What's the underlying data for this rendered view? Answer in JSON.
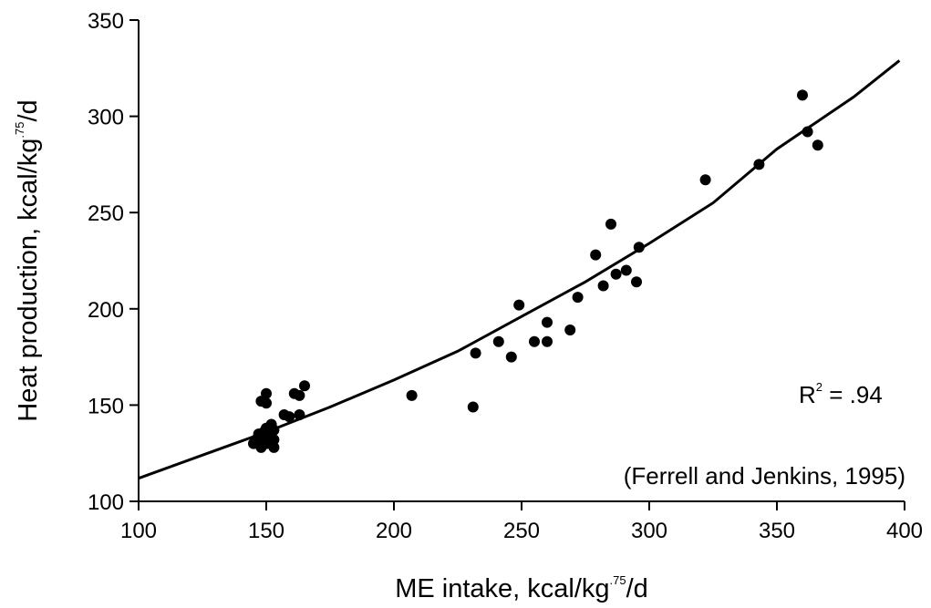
{
  "chart_data": {
    "type": "scatter",
    "xlabel": {
      "prefix": "ME intake, kcal/kg",
      "sup": ".75",
      "suffix": "/d"
    },
    "ylabel": {
      "prefix": "Heat production, kcal/kg",
      "sup": ".75",
      "suffix": "/d"
    },
    "xlim": [
      100,
      400
    ],
    "ylim": [
      100,
      350
    ],
    "xticks": [
      100,
      150,
      200,
      250,
      300,
      350,
      400
    ],
    "yticks": [
      100,
      150,
      200,
      250,
      300,
      350
    ],
    "grid": false,
    "points": [
      {
        "x": 145,
        "y": 130
      },
      {
        "x": 146,
        "y": 132
      },
      {
        "x": 147,
        "y": 135
      },
      {
        "x": 148,
        "y": 128
      },
      {
        "x": 148,
        "y": 152
      },
      {
        "x": 149,
        "y": 133
      },
      {
        "x": 149,
        "y": 136
      },
      {
        "x": 150,
        "y": 130
      },
      {
        "x": 150,
        "y": 138
      },
      {
        "x": 150,
        "y": 156
      },
      {
        "x": 150,
        "y": 151
      },
      {
        "x": 151,
        "y": 132
      },
      {
        "x": 151,
        "y": 134
      },
      {
        "x": 152,
        "y": 136
      },
      {
        "x": 152,
        "y": 130
      },
      {
        "x": 152,
        "y": 140
      },
      {
        "x": 153,
        "y": 128
      },
      {
        "x": 153,
        "y": 132
      },
      {
        "x": 153,
        "y": 137
      },
      {
        "x": 157,
        "y": 145
      },
      {
        "x": 159,
        "y": 144
      },
      {
        "x": 161,
        "y": 156
      },
      {
        "x": 163,
        "y": 155
      },
      {
        "x": 163,
        "y": 145
      },
      {
        "x": 165,
        "y": 160
      },
      {
        "x": 207,
        "y": 155
      },
      {
        "x": 231,
        "y": 149
      },
      {
        "x": 232,
        "y": 177
      },
      {
        "x": 241,
        "y": 183
      },
      {
        "x": 246,
        "y": 175
      },
      {
        "x": 249,
        "y": 202
      },
      {
        "x": 255,
        "y": 183
      },
      {
        "x": 260,
        "y": 193
      },
      {
        "x": 260,
        "y": 183
      },
      {
        "x": 269,
        "y": 189
      },
      {
        "x": 272,
        "y": 206
      },
      {
        "x": 279,
        "y": 228
      },
      {
        "x": 282,
        "y": 212
      },
      {
        "x": 285,
        "y": 244
      },
      {
        "x": 287,
        "y": 218
      },
      {
        "x": 291,
        "y": 220
      },
      {
        "x": 295,
        "y": 214
      },
      {
        "x": 296,
        "y": 232
      },
      {
        "x": 322,
        "y": 267
      },
      {
        "x": 343,
        "y": 275
      },
      {
        "x": 360,
        "y": 311
      },
      {
        "x": 362,
        "y": 292
      },
      {
        "x": 366,
        "y": 285
      }
    ],
    "fit_line": [
      {
        "x": 100,
        "y": 112
      },
      {
        "x": 125,
        "y": 124
      },
      {
        "x": 150,
        "y": 136
      },
      {
        "x": 175,
        "y": 149
      },
      {
        "x": 200,
        "y": 163
      },
      {
        "x": 225,
        "y": 178
      },
      {
        "x": 250,
        "y": 196
      },
      {
        "x": 275,
        "y": 214
      },
      {
        "x": 300,
        "y": 234
      },
      {
        "x": 325,
        "y": 255
      },
      {
        "x": 350,
        "y": 283
      },
      {
        "x": 380,
        "y": 310
      },
      {
        "x": 398,
        "y": 329
      }
    ],
    "annotations": {
      "r2": {
        "prefix": "R",
        "sup": "2",
        "suffix": " = .94"
      },
      "source": "(Ferrell and Jenkins, 1995)"
    }
  }
}
